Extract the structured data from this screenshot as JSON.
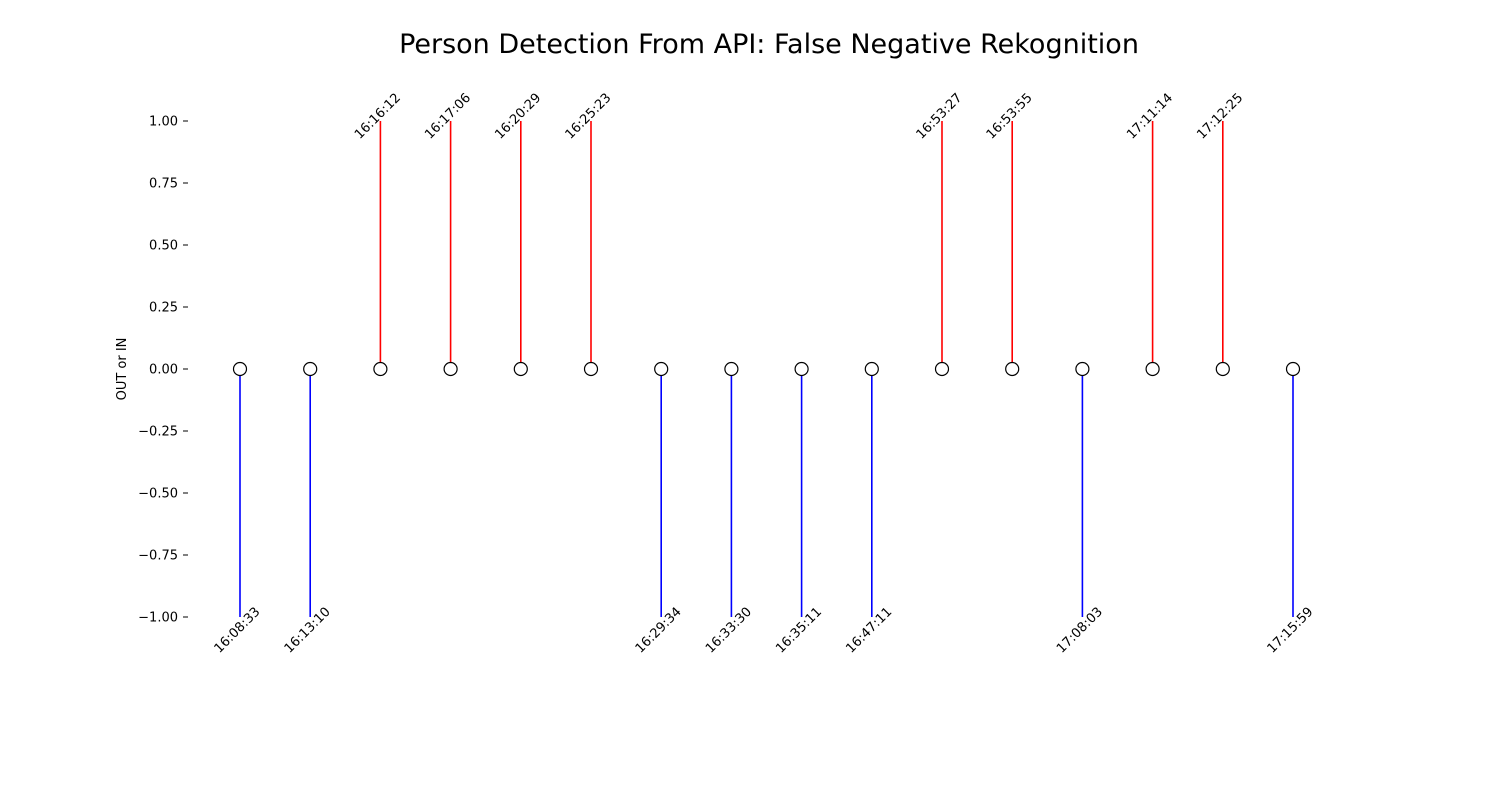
{
  "chart_data": {
    "type": "stem",
    "title": "Person Detection From API: False Negative Rekognition",
    "xlabel": "",
    "ylabel": "OUT or IN",
    "ylim": [
      -1.0,
      1.0
    ],
    "yticks": [
      "1.00",
      "0.75",
      "0.50",
      "0.25",
      "0.00",
      "−0.25",
      "−0.50",
      "−0.75",
      "−1.00"
    ],
    "ytick_values": [
      1.0,
      0.75,
      0.5,
      0.25,
      0.0,
      -0.25,
      -0.5,
      -0.75,
      -1.0
    ],
    "grid": false,
    "colors": {
      "in": "#ff0000",
      "out": "#0000ff",
      "marker_edge": "#000000",
      "marker_fill": "#ffffff"
    },
    "events": [
      {
        "time": "16:08:33",
        "value": -1
      },
      {
        "time": "16:13:10",
        "value": -1
      },
      {
        "time": "16:16:12",
        "value": 1
      },
      {
        "time": "16:17:06",
        "value": 1
      },
      {
        "time": "16:20:29",
        "value": 1
      },
      {
        "time": "16:25:23",
        "value": 1
      },
      {
        "time": "16:29:34",
        "value": -1
      },
      {
        "time": "16:33:30",
        "value": -1
      },
      {
        "time": "16:35:11",
        "value": -1
      },
      {
        "time": "16:47:11",
        "value": -1
      },
      {
        "time": "16:53:27",
        "value": 1
      },
      {
        "time": "16:53:55",
        "value": 1
      },
      {
        "time": "17:08:03",
        "value": -1
      },
      {
        "time": "17:11:14",
        "value": 1
      },
      {
        "time": "17:12:25",
        "value": 1
      },
      {
        "time": "17:15:59",
        "value": -1
      }
    ]
  }
}
